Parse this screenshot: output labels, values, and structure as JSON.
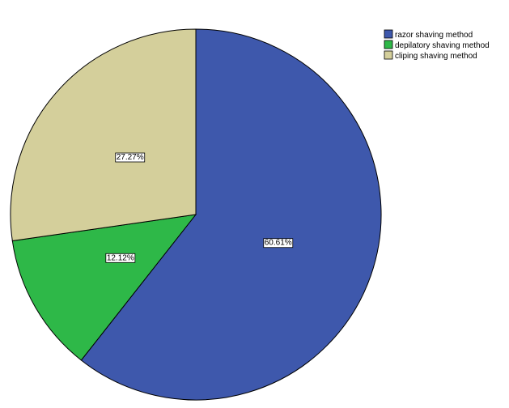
{
  "chart_data": {
    "type": "pie",
    "title": "",
    "categories": [
      "razor shaving method",
      "depilatory shaving method",
      "cliping shaving method"
    ],
    "values": [
      60.61,
      12.12,
      27.27
    ],
    "value_labels": [
      "60.61%",
      "12.12%",
      "27.27%"
    ],
    "colors": [
      "#3e58ac",
      "#2eb848",
      "#d4cf9b"
    ],
    "start_angle": "12 o'clock",
    "direction": "clockwise",
    "legend_position": "top-right"
  }
}
